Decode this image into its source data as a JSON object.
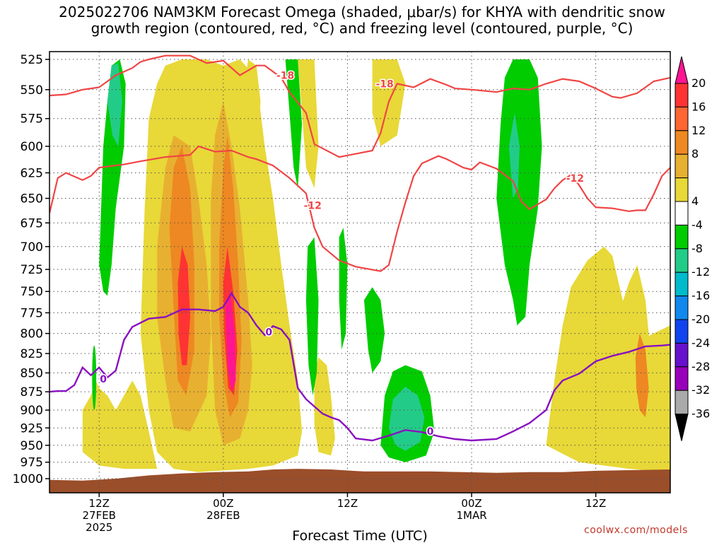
{
  "title_line1": "2025022706 NAM3KM Forecast Omega (shaded, μbar/s) for KHYA with dendritic snow",
  "title_line2": "growth region (contoured, red, °C) and freezing level (contoured, purple, °C)",
  "credit": "coolwx.com/models",
  "chart_data": {
    "type": "time-height cross section",
    "xlabel": "Forecast Time (UTC)",
    "x_range_hours": [
      6,
      81
    ],
    "x_ticks": [
      {
        "hour": 12,
        "lines": [
          "12Z",
          "27FEB",
          "2025"
        ]
      },
      {
        "hour": 27,
        "lines": [
          "00Z",
          "28FEB"
        ]
      },
      {
        "hour": 42,
        "lines": [
          "12Z"
        ]
      },
      {
        "hour": 57,
        "lines": [
          "00Z",
          "1MAR"
        ]
      },
      {
        "hour": 72,
        "lines": [
          "12Z"
        ]
      }
    ],
    "y_ticks_hpa": [
      "525",
      "550",
      "575",
      "600",
      "625",
      "650",
      "675",
      "700",
      "725",
      "750",
      "775",
      "800",
      "825",
      "850",
      "875",
      "900",
      "925",
      "950",
      "975",
      "1000"
    ],
    "colorbar": {
      "labels": [
        "20",
        "16",
        "12",
        "8",
        "4",
        "-4",
        "-8",
        "-12",
        "-16",
        "-20",
        "-24",
        "-28",
        "-32",
        "-36"
      ],
      "colors": [
        "#ff1493",
        "#ff3333",
        "#ff6633",
        "#ee8822",
        "#e8b030",
        "#e8d838",
        "#ffffff",
        "#00cc00",
        "#22cc88",
        "#00bbcc",
        "#1188ee",
        "#1144ee",
        "#6611cc",
        "#9900bb",
        "#aaaaaa",
        "#000000"
      ]
    },
    "contour_labels": {
      "dgz": [
        "-18",
        "-18",
        "-12",
        "-12"
      ],
      "freezing": [
        "0",
        "0",
        "0"
      ]
    },
    "dgz_minus18_line": [
      [
        6,
        555
      ],
      [
        8,
        554
      ],
      [
        10,
        550
      ],
      [
        12,
        548
      ],
      [
        14,
        538
      ],
      [
        16,
        532
      ],
      [
        17,
        527
      ],
      [
        18,
        525
      ],
      [
        20,
        522
      ],
      [
        23,
        522
      ],
      [
        25,
        528
      ],
      [
        27,
        526
      ],
      [
        29,
        538
      ],
      [
        31,
        530
      ],
      [
        32,
        530
      ],
      [
        34,
        540
      ],
      [
        35,
        552
      ],
      [
        37,
        570
      ],
      [
        38,
        598
      ],
      [
        41,
        610
      ],
      [
        43,
        607
      ],
      [
        45,
        604
      ],
      [
        46,
        588
      ],
      [
        47,
        560
      ],
      [
        48,
        545
      ],
      [
        50,
        548
      ],
      [
        52,
        541
      ],
      [
        54,
        546
      ],
      [
        55,
        549
      ],
      [
        57,
        550
      ],
      [
        60,
        552
      ],
      [
        62,
        549
      ],
      [
        64,
        550
      ],
      [
        66,
        545
      ],
      [
        68,
        541
      ],
      [
        70,
        543
      ],
      [
        72,
        549
      ],
      [
        74,
        556
      ],
      [
        75,
        557
      ],
      [
        77,
        553
      ],
      [
        79,
        543
      ],
      [
        81,
        540
      ]
    ],
    "dgz_minus12_line": [
      [
        6,
        665
      ],
      [
        7,
        630
      ],
      [
        8,
        625
      ],
      [
        10,
        632
      ],
      [
        11,
        628
      ],
      [
        12,
        620
      ],
      [
        15,
        617
      ],
      [
        17,
        614
      ],
      [
        20,
        610
      ],
      [
        23,
        608
      ],
      [
        24,
        600
      ],
      [
        26,
        605
      ],
      [
        28,
        604
      ],
      [
        30,
        610
      ],
      [
        31,
        612
      ],
      [
        33,
        618
      ],
      [
        35,
        630
      ],
      [
        37,
        645
      ],
      [
        38,
        680
      ],
      [
        39,
        700
      ],
      [
        41,
        715
      ],
      [
        43,
        722
      ],
      [
        46,
        727
      ],
      [
        47,
        720
      ],
      [
        48,
        684
      ],
      [
        49,
        654
      ],
      [
        50,
        628
      ],
      [
        51,
        616
      ],
      [
        53,
        609
      ],
      [
        54,
        612
      ],
      [
        56,
        620
      ],
      [
        57,
        622
      ],
      [
        58,
        615
      ],
      [
        60,
        621
      ],
      [
        62,
        633
      ],
      [
        63,
        653
      ],
      [
        64,
        661
      ],
      [
        66,
        651
      ],
      [
        67,
        640
      ],
      [
        68,
        632
      ],
      [
        69,
        627
      ],
      [
        70,
        637
      ],
      [
        71,
        650
      ],
      [
        72,
        659
      ],
      [
        74,
        660
      ],
      [
        76,
        663
      ],
      [
        77,
        662
      ],
      [
        78,
        662
      ],
      [
        79,
        646
      ],
      [
        80,
        628
      ],
      [
        81,
        620
      ]
    ],
    "freezing_line": [
      [
        6,
        875
      ],
      [
        7,
        874
      ],
      [
        8,
        874
      ],
      [
        9,
        866
      ],
      [
        10,
        843
      ],
      [
        11,
        853
      ],
      [
        12,
        843
      ],
      [
        13,
        856
      ],
      [
        14,
        847
      ],
      [
        15,
        808
      ],
      [
        16,
        792
      ],
      [
        18,
        782
      ],
      [
        20,
        780
      ],
      [
        22,
        771
      ],
      [
        24,
        771
      ],
      [
        26,
        773
      ],
      [
        27,
        768
      ],
      [
        28,
        752
      ],
      [
        29,
        768
      ],
      [
        30,
        775
      ],
      [
        31,
        790
      ],
      [
        32,
        802
      ],
      [
        33,
        791
      ],
      [
        34,
        795
      ],
      [
        35,
        808
      ],
      [
        36,
        870
      ],
      [
        37,
        885
      ],
      [
        39,
        905
      ],
      [
        40,
        910
      ],
      [
        41,
        914
      ],
      [
        42,
        925
      ],
      [
        43,
        940
      ],
      [
        45,
        943
      ],
      [
        47,
        936
      ],
      [
        49,
        928
      ],
      [
        51,
        931
      ],
      [
        53,
        937
      ],
      [
        55,
        941
      ],
      [
        57,
        943
      ],
      [
        60,
        941
      ],
      [
        62,
        930
      ],
      [
        64,
        918
      ],
      [
        66,
        900
      ],
      [
        67,
        873
      ],
      [
        68,
        860
      ],
      [
        70,
        851
      ],
      [
        72,
        835
      ],
      [
        74,
        828
      ],
      [
        76,
        823
      ],
      [
        78,
        816
      ],
      [
        80,
        815
      ],
      [
        81,
        814
      ]
    ]
  }
}
